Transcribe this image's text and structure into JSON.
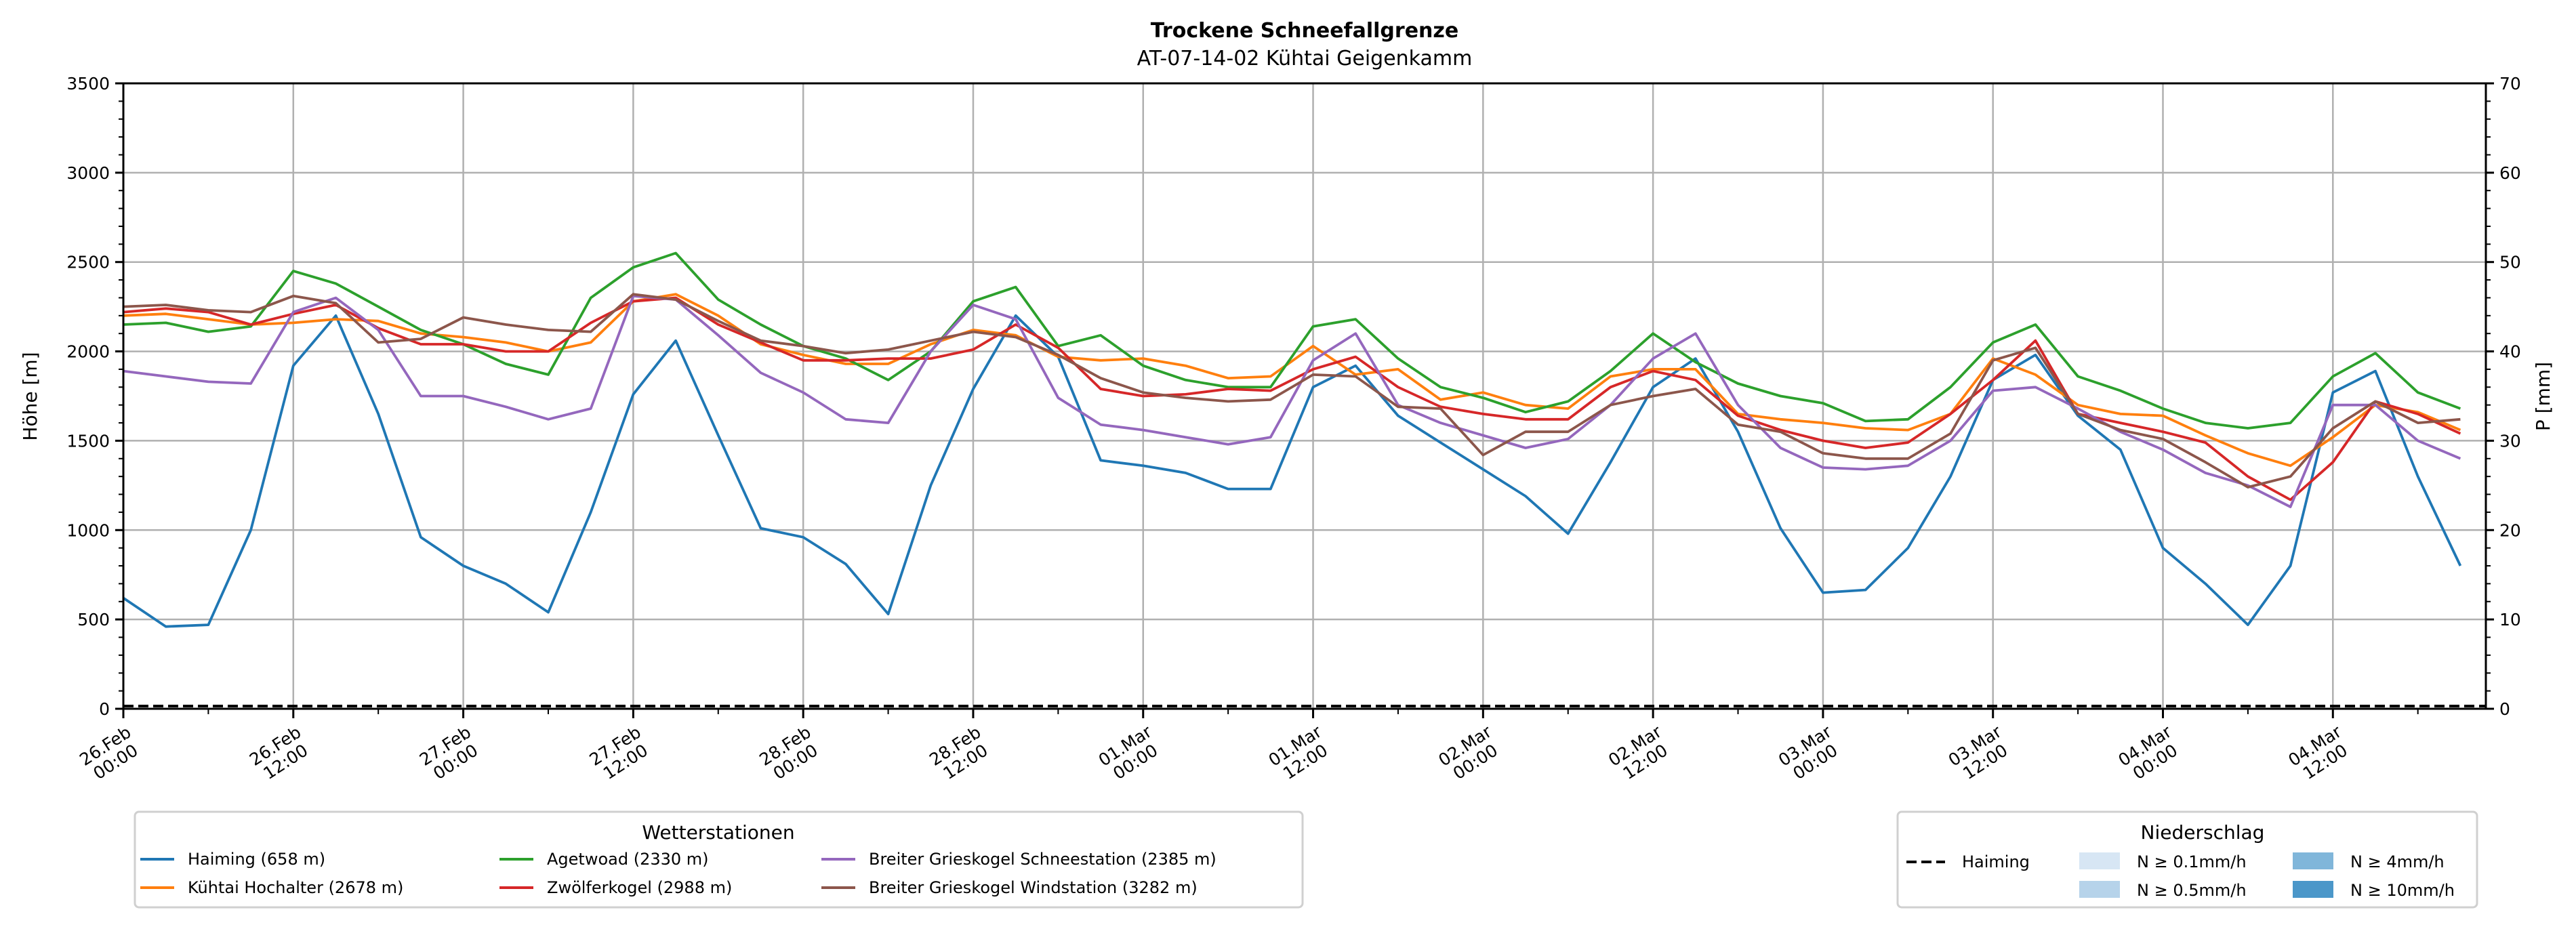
{
  "chart_data": {
    "type": "line",
    "title": "Trockene Schneefallgrenze",
    "subtitle": "AT-07-14-02 Kühtai Geigenkamm",
    "ylabel": "Höhe [m]",
    "ylabel_right": "P [mm]",
    "ylim": [
      0,
      3500
    ],
    "ylim_right": [
      0,
      70
    ],
    "yticks": [
      "0",
      "500",
      "1000",
      "1500",
      "2000",
      "2500",
      "3000",
      "3500"
    ],
    "yticks_right": [
      "0",
      "10",
      "20",
      "30",
      "40",
      "50",
      "60",
      "70"
    ],
    "grid": true,
    "x_unit": "hours since 26.Feb 00:00",
    "xlim_hours": [
      0,
      166.8
    ],
    "x_hours": [
      0,
      3,
      6,
      9,
      12,
      15,
      18,
      21,
      24,
      27,
      30,
      33,
      36,
      39,
      42,
      45,
      48,
      51,
      54,
      57,
      60,
      63,
      66,
      69,
      72,
      75,
      78,
      81,
      84,
      87,
      90,
      93,
      96,
      99,
      102,
      105,
      108,
      111,
      114,
      117,
      120,
      123,
      126,
      129,
      132,
      135,
      138,
      141,
      144,
      147,
      150,
      153,
      156,
      159,
      162,
      165
    ],
    "xticks": [
      {
        "hour": 0,
        "line1": "26.Feb",
        "line2": "00:00"
      },
      {
        "hour": 12,
        "line1": "26.Feb",
        "line2": "12:00"
      },
      {
        "hour": 24,
        "line1": "27.Feb",
        "line2": "00:00"
      },
      {
        "hour": 36,
        "line1": "27.Feb",
        "line2": "12:00"
      },
      {
        "hour": 48,
        "line1": "28.Feb",
        "line2": "00:00"
      },
      {
        "hour": 60,
        "line1": "28.Feb",
        "line2": "12:00"
      },
      {
        "hour": 72,
        "line1": "01.Mar",
        "line2": "00:00"
      },
      {
        "hour": 84,
        "line1": "01.Mar",
        "line2": "12:00"
      },
      {
        "hour": 96,
        "line1": "02.Mar",
        "line2": "00:00"
      },
      {
        "hour": 108,
        "line1": "02.Mar",
        "line2": "12:00"
      },
      {
        "hour": 120,
        "line1": "03.Mar",
        "line2": "00:00"
      },
      {
        "hour": 132,
        "line1": "03.Mar",
        "line2": "12:00"
      },
      {
        "hour": 144,
        "line1": "04.Mar",
        "line2": "00:00"
      },
      {
        "hour": 156,
        "line1": "04.Mar",
        "line2": "12:00"
      }
    ],
    "series": [
      {
        "name": "Haiming (658 m)",
        "color": "#1f77b4",
        "values": [
          620,
          460,
          470,
          1000,
          1920,
          2200,
          1650,
          960,
          800,
          700,
          540,
          1100,
          1760,
          2060,
          1530,
          1010,
          960,
          810,
          530,
          1250,
          1790,
          2200,
          1970,
          1390,
          1360,
          1320,
          1230,
          1230,
          1800,
          1920,
          1640,
          1490,
          1340,
          1190,
          980,
          1380,
          1800,
          1960,
          1550,
          1010,
          650,
          665,
          900,
          1300,
          1840,
          1980,
          1640,
          1450,
          900,
          700,
          470,
          800,
          1770,
          1890,
          1300,
          800
        ]
      },
      {
        "name": "Kühtai Hochalter (2678 m)",
        "color": "#ff7f0e",
        "values": [
          2200,
          2210,
          2180,
          2150,
          2160,
          2180,
          2170,
          2100,
          2080,
          2050,
          2000,
          2050,
          2280,
          2320,
          2200,
          2040,
          1980,
          1930,
          1930,
          2040,
          2120,
          2090,
          1970,
          1950,
          1960,
          1920,
          1850,
          1860,
          2030,
          1870,
          1900,
          1730,
          1770,
          1700,
          1680,
          1860,
          1900,
          1900,
          1650,
          1620,
          1600,
          1570,
          1560,
          1650,
          1960,
          1870,
          1700,
          1650,
          1640,
          1530,
          1430,
          1360,
          1520,
          1700,
          1660,
          1560
        ]
      },
      {
        "name": "Agetwoad (2330 m)",
        "color": "#2ca02c",
        "values": [
          2150,
          2160,
          2110,
          2140,
          2450,
          2380,
          2250,
          2120,
          2040,
          1930,
          1870,
          2300,
          2470,
          2550,
          2290,
          2150,
          2030,
          1960,
          1840,
          2000,
          2280,
          2360,
          2030,
          2090,
          1920,
          1840,
          1800,
          1800,
          2140,
          2180,
          1960,
          1800,
          1740,
          1660,
          1720,
          1890,
          2100,
          1940,
          1820,
          1750,
          1710,
          1610,
          1620,
          1800,
          2050,
          2150,
          1860,
          1780,
          1680,
          1600,
          1570,
          1600,
          1860,
          1990,
          1770,
          1680
        ]
      },
      {
        "name": "Zwölferkogel (2988 m)",
        "color": "#d62728",
        "values": [
          2220,
          2240,
          2220,
          2150,
          2210,
          2260,
          2130,
          2040,
          2040,
          2000,
          2000,
          2160,
          2280,
          2300,
          2150,
          2050,
          1950,
          1950,
          1960,
          1960,
          2010,
          2150,
          2020,
          1790,
          1750,
          1760,
          1790,
          1780,
          1900,
          1970,
          1800,
          1690,
          1650,
          1620,
          1620,
          1800,
          1890,
          1840,
          1640,
          1560,
          1500,
          1460,
          1490,
          1650,
          1840,
          2060,
          1650,
          1600,
          1550,
          1490,
          1300,
          1170,
          1380,
          1720,
          1650,
          1540
        ]
      },
      {
        "name": "Breiter Grieskogel Schneestation (2385 m)",
        "color": "#9467bd",
        "values": [
          1890,
          1860,
          1830,
          1820,
          2220,
          2300,
          2120,
          1750,
          1750,
          1690,
          1620,
          1680,
          2310,
          2290,
          2090,
          1880,
          1770,
          1620,
          1600,
          2000,
          2260,
          2180,
          1740,
          1590,
          1560,
          1520,
          1480,
          1520,
          1950,
          2100,
          1700,
          1600,
          1530,
          1460,
          1510,
          1700,
          1960,
          2100,
          1700,
          1460,
          1350,
          1340,
          1360,
          1500,
          1780,
          1800,
          1680,
          1550,
          1450,
          1320,
          1250,
          1130,
          1700,
          1700,
          1500,
          1400
        ]
      },
      {
        "name": "Breiter Grieskogel Windstation (3282 m)",
        "color": "#8c564b",
        "values": [
          2250,
          2260,
          2230,
          2220,
          2310,
          2270,
          2050,
          2070,
          2190,
          2150,
          2120,
          2110,
          2320,
          2290,
          2170,
          2060,
          2030,
          1990,
          2010,
          2060,
          2110,
          2080,
          1980,
          1850,
          1770,
          1740,
          1720,
          1730,
          1870,
          1860,
          1690,
          1680,
          1420,
          1550,
          1550,
          1700,
          1750,
          1790,
          1590,
          1550,
          1430,
          1400,
          1400,
          1540,
          1950,
          2020,
          1650,
          1560,
          1510,
          1380,
          1240,
          1300,
          1570,
          1720,
          1600,
          1620
        ]
      }
    ],
    "precipitation": {
      "name": "Haiming",
      "color": "#000000",
      "style": "dashed",
      "values_mm": [
        0,
        0
      ]
    },
    "legends": {
      "stations": {
        "title": "Wetterstationen",
        "placement": "bottom-left"
      },
      "precip": {
        "title": "Niederschlag",
        "placement": "bottom-right",
        "line_label": "Haiming",
        "classes": [
          {
            "label": "N ≥ 0.1mm/h",
            "color": "#d7e6f4"
          },
          {
            "label": "N ≥ 0.5mm/h",
            "color": "#b6d3ea"
          },
          {
            "label": "N ≥ 4mm/h",
            "color": "#80b6da"
          },
          {
            "label": "N ≥ 10mm/h",
            "color": "#4b97c9"
          }
        ]
      }
    }
  }
}
